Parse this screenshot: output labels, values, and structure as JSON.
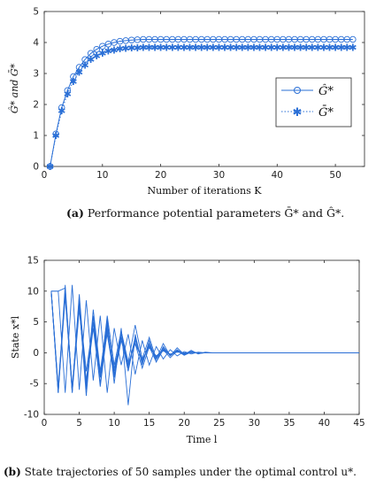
{
  "captions": {
    "a_label": "(a)",
    "a_text": " Performance potential parameters Ḡ* and Ĝ*.",
    "b_label": "(b)",
    "b_text": " State trajectories of 50 samples under the optimal control u*."
  },
  "chart_data": [
    {
      "type": "line",
      "xlabel": "Number of iterations K",
      "ylabel": "Ĝ* and Ḡ*",
      "xlim": [
        0,
        55
      ],
      "ylim": [
        0,
        5
      ],
      "xticks": [
        0,
        10,
        20,
        30,
        40,
        50
      ],
      "yticks": [
        0,
        1,
        2,
        3,
        4,
        5
      ],
      "legend_position": "right-center",
      "x": [
        1,
        2,
        3,
        4,
        5,
        6,
        7,
        8,
        9,
        10,
        11,
        12,
        13,
        14,
        15,
        16,
        17,
        18,
        19,
        20,
        21,
        22,
        23,
        24,
        25,
        26,
        27,
        28,
        29,
        30,
        31,
        32,
        33,
        34,
        35,
        36,
        37,
        38,
        39,
        40,
        41,
        42,
        43,
        44,
        45,
        46,
        47,
        48,
        49,
        50,
        51,
        52,
        53
      ],
      "series": [
        {
          "name": "Ĝ*",
          "marker": "circle",
          "line": "solid",
          "color": "#2a6fd6",
          "values": [
            0.0,
            1.05,
            1.9,
            2.45,
            2.9,
            3.2,
            3.45,
            3.65,
            3.78,
            3.88,
            3.95,
            4.0,
            4.04,
            4.06,
            4.08,
            4.09,
            4.1,
            4.1,
            4.1,
            4.1,
            4.1,
            4.1,
            4.1,
            4.1,
            4.1,
            4.1,
            4.1,
            4.1,
            4.1,
            4.1,
            4.1,
            4.1,
            4.1,
            4.1,
            4.1,
            4.1,
            4.1,
            4.1,
            4.1,
            4.1,
            4.1,
            4.1,
            4.1,
            4.1,
            4.1,
            4.1,
            4.1,
            4.1,
            4.1,
            4.1,
            4.1,
            4.1,
            4.1
          ]
        },
        {
          "name": "Ḡ*",
          "marker": "asterisk",
          "line": "dotted",
          "color": "#2a6fd6",
          "values": [
            0.0,
            1.0,
            1.8,
            2.35,
            2.75,
            3.05,
            3.28,
            3.46,
            3.58,
            3.67,
            3.73,
            3.77,
            3.8,
            3.82,
            3.83,
            3.84,
            3.85,
            3.85,
            3.85,
            3.85,
            3.85,
            3.85,
            3.85,
            3.85,
            3.85,
            3.85,
            3.85,
            3.85,
            3.85,
            3.85,
            3.85,
            3.85,
            3.85,
            3.85,
            3.85,
            3.85,
            3.85,
            3.85,
            3.85,
            3.85,
            3.85,
            3.85,
            3.85,
            3.85,
            3.85,
            3.85,
            3.85,
            3.85,
            3.85,
            3.85,
            3.85,
            3.85,
            3.85
          ]
        }
      ]
    },
    {
      "type": "line",
      "xlabel": "Time l",
      "ylabel": "State x*l",
      "xlim": [
        0,
        45
      ],
      "ylim": [
        -10,
        15
      ],
      "xticks": [
        0,
        5,
        10,
        15,
        20,
        25,
        30,
        35,
        40,
        45
      ],
      "yticks": [
        -10,
        -5,
        0,
        5,
        10,
        15
      ],
      "color": "#2a6fd6",
      "sample_count": 50,
      "x": [
        1,
        2,
        3,
        4,
        5,
        6,
        7,
        8,
        9,
        10,
        11,
        12,
        13,
        14,
        15,
        16,
        17,
        18,
        19,
        20,
        21,
        22,
        23,
        24,
        25,
        26,
        27,
        28,
        29,
        30,
        31,
        32,
        33,
        34,
        35,
        36,
        37,
        38,
        39,
        40,
        41,
        42,
        43,
        44,
        45
      ],
      "series": [
        {
          "values": [
            10,
            -6.5,
            10,
            -6,
            8,
            -5,
            6,
            -4,
            4.5,
            -3,
            3,
            -2,
            2,
            -1.2,
            1,
            -0.6,
            0.5,
            -0.3,
            0.2,
            -0.1,
            0.1,
            0,
            0,
            0,
            0,
            0,
            0,
            0,
            0,
            0,
            0,
            0,
            0,
            0,
            0,
            0,
            0,
            0,
            0,
            0,
            0,
            0,
            0,
            0,
            0
          ]
        },
        {
          "values": [
            10,
            -6,
            9.5,
            -6.5,
            7,
            -4.5,
            5,
            -5.5,
            3.5,
            -2.5,
            2.5,
            -1.8,
            1.5,
            -1,
            0.8,
            -0.5,
            0.3,
            -0.2,
            0.1,
            0,
            0,
            0,
            0,
            0,
            0,
            0,
            0,
            0,
            0,
            0,
            0,
            0,
            0,
            0,
            0,
            0,
            0,
            0,
            0,
            0,
            0,
            0,
            0,
            0,
            0
          ]
        },
        {
          "values": [
            10,
            10,
            10.5,
            -6,
            9,
            -6,
            7,
            -3,
            5,
            -4,
            3.5,
            -2.5,
            2.5,
            -1.5,
            1.5,
            -1,
            0.8,
            -0.5,
            0.4,
            -0.2,
            0.2,
            -0.1,
            0,
            0,
            0,
            0,
            0,
            0,
            0,
            0,
            0,
            0,
            0,
            0,
            0,
            0,
            0,
            0,
            0,
            0,
            0,
            0,
            0,
            0,
            0
          ]
        },
        {
          "values": [
            10,
            -6.5,
            9,
            -6,
            8,
            -7,
            6,
            -3.5,
            5.5,
            -5,
            4,
            -8.5,
            3,
            -2,
            2,
            -1.5,
            1,
            -0.5,
            0.5,
            -0.3,
            0.2,
            -0.1,
            0,
            0,
            0,
            0,
            0,
            0,
            0,
            0,
            0,
            0,
            0,
            0,
            0,
            0,
            0,
            0,
            0,
            0,
            0,
            0,
            0,
            0,
            0
          ]
        },
        {
          "values": [
            10,
            10,
            -6.5,
            11,
            -6,
            8.5,
            -4.5,
            6,
            -6.5,
            4,
            -2,
            3,
            -3.5,
            2,
            -2,
            1,
            -1,
            0.5,
            -0.5,
            0.2,
            -0.2,
            0.1,
            0,
            0,
            0,
            0,
            0,
            0,
            0,
            0,
            0,
            0,
            0,
            0,
            0,
            0,
            0,
            0,
            0,
            0,
            0,
            0,
            0,
            0,
            0
          ]
        },
        {
          "values": [
            10,
            -6,
            10,
            -6.2,
            9.5,
            -5,
            4,
            -5,
            4,
            -3.5,
            2.5,
            -3,
            2.5,
            -1.5,
            1.2,
            -0.8,
            0.6,
            -0.4,
            0.3,
            -0.2,
            0.1,
            0,
            0,
            0,
            0,
            0,
            0,
            0,
            0,
            0,
            0,
            0,
            0,
            0,
            0,
            0,
            0,
            0,
            0,
            0,
            0,
            0,
            0,
            0,
            0
          ]
        },
        {
          "values": [
            10,
            -5.5,
            10,
            -5.5,
            7.5,
            -6,
            5,
            -4,
            6,
            -2,
            3.5,
            -1.5,
            4.5,
            -1,
            2.5,
            -1,
            1.5,
            -0.5,
            0.8,
            -0.3,
            0.4,
            -0.2,
            0.1,
            0,
            0,
            0,
            0,
            0,
            0,
            0,
            0,
            0,
            0,
            0,
            0,
            0,
            0,
            0,
            0,
            0,
            0,
            0,
            0,
            0,
            0
          ]
        },
        {
          "values": [
            10,
            -6.5,
            11,
            -6.5,
            8,
            -3,
            5,
            -3,
            3,
            -4,
            2,
            -2,
            1.5,
            -2.5,
            1,
            -1.5,
            0.5,
            -0.8,
            0.3,
            -0.4,
            0.1,
            -0.1,
            0,
            0,
            0,
            0,
            0,
            0,
            0,
            0,
            0,
            0,
            0,
            0,
            0,
            0,
            0,
            0,
            0,
            0,
            0,
            0,
            0,
            0,
            0
          ]
        }
      ]
    }
  ]
}
